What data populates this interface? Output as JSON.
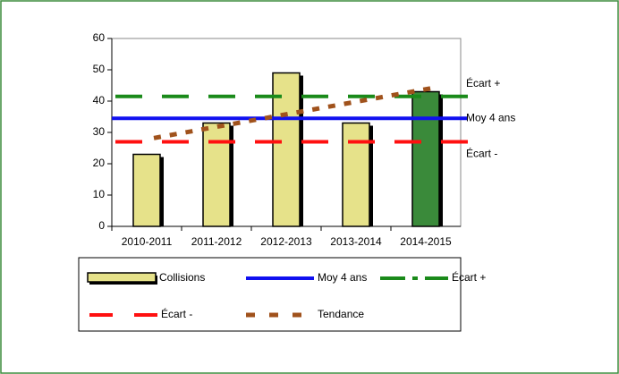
{
  "chart_data": {
    "type": "bar",
    "categories": [
      "2010-2011",
      "2011-2012",
      "2012-2013",
      "2013-2014",
      "2014-2015"
    ],
    "series": [
      {
        "name": "Collisions",
        "values": [
          23,
          33,
          49,
          33,
          43
        ],
        "colors": [
          "#e6e28a",
          "#e6e28a",
          "#e6e28a",
          "#e6e28a",
          "#3a8a3a"
        ]
      },
      {
        "name": "Moy 4 ans",
        "color": "#1010f0",
        "value": 34.5
      },
      {
        "name": "Écart +",
        "color": "#1a8a1a",
        "value": 41.5
      },
      {
        "name": "Écart -",
        "color": "#ff1010",
        "value": 27
      },
      {
        "name": "Tendance",
        "color": "#a0521c",
        "values": [
          28.2,
          32.2,
          36.2,
          40.2,
          44.2
        ]
      }
    ],
    "ylim": [
      0,
      60
    ],
    "yticks": [
      0,
      10,
      20,
      30,
      40,
      50,
      60
    ]
  }
}
